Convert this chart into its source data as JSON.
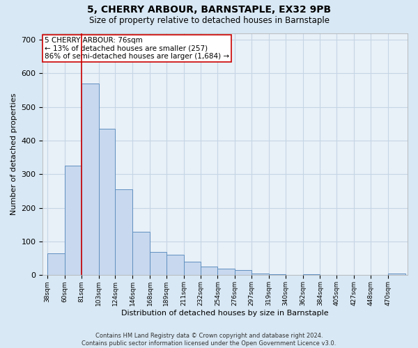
{
  "title": "5, CHERRY ARBOUR, BARNSTAPLE, EX32 9PB",
  "subtitle": "Size of property relative to detached houses in Barnstaple",
  "xlabel": "Distribution of detached houses by size in Barnstaple",
  "ylabel": "Number of detached properties",
  "footer_line1": "Contains HM Land Registry data © Crown copyright and database right 2024.",
  "footer_line2": "Contains public sector information licensed under the Open Government Licence v3.0.",
  "annotation_title": "5 CHERRY ARBOUR: 76sqm",
  "annotation_line2": "← 13% of detached houses are smaller (257)",
  "annotation_line3": "86% of semi-detached houses are larger (1,684) →",
  "bar_left_edges": [
    38,
    60,
    81,
    103,
    124,
    146,
    168,
    189,
    211,
    232,
    254,
    276,
    297,
    319,
    340,
    362,
    384,
    405,
    427,
    448,
    470
  ],
  "bar_heights": [
    65,
    325,
    570,
    435,
    255,
    130,
    70,
    60,
    40,
    25,
    20,
    15,
    5,
    2,
    1,
    2,
    1,
    0,
    0,
    0,
    5
  ],
  "bar_color": "#c8d8ee",
  "bar_edge_color": "#6090c0",
  "vline_x": 81,
  "vline_color": "#cc0000",
  "ylim": [
    0,
    720
  ],
  "yticks": [
    0,
    100,
    200,
    300,
    400,
    500,
    600,
    700
  ],
  "xlim": [
    32,
    495
  ],
  "annotation_box_color": "#ffffff",
  "annotation_box_edge_color": "#cc0000",
  "grid_color": "#c5d5e5",
  "bg_color": "#d8e8f4",
  "plot_bg_color": "#e8f0f8"
}
